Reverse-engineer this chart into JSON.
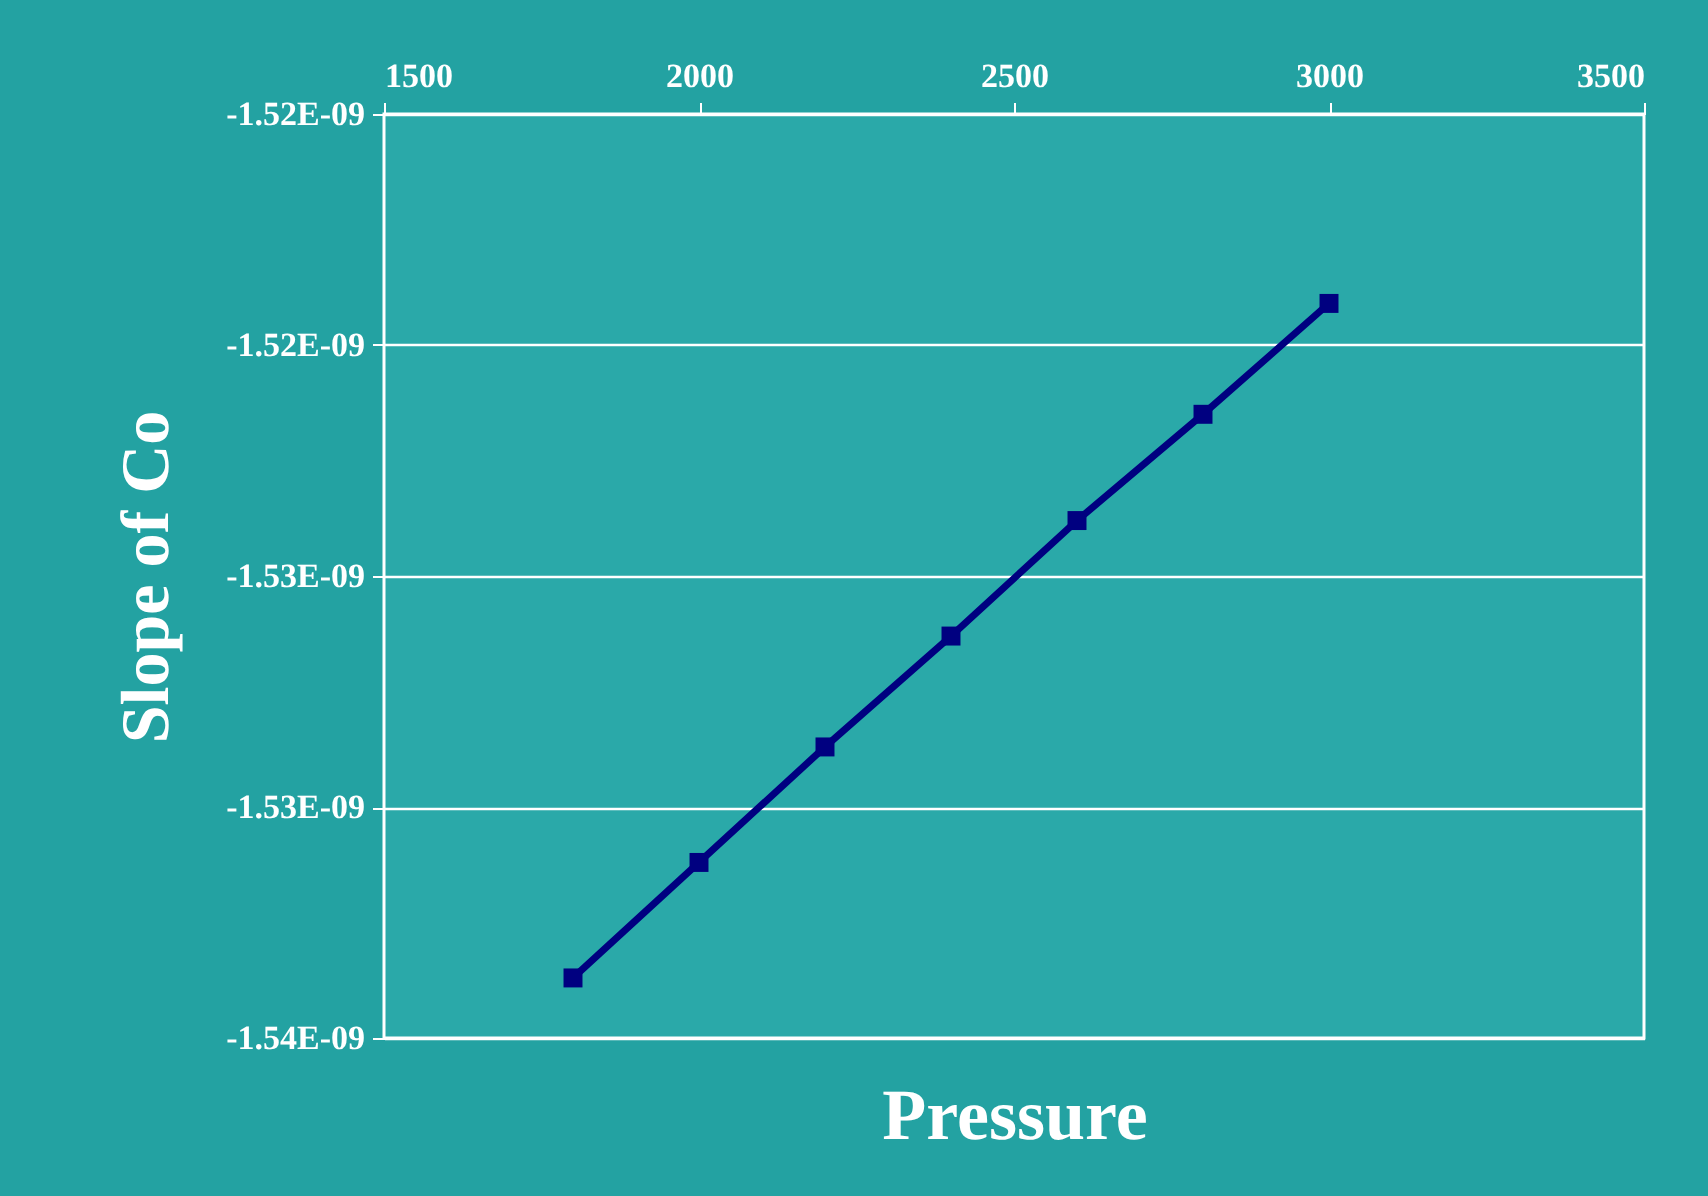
{
  "chart_data": {
    "type": "line",
    "xlabel": "Pressure",
    "ylabel": "Slope of Co",
    "x": [
      1800,
      2000,
      2200,
      2400,
      2600,
      2800,
      3000
    ],
    "series": [
      {
        "color": "#000080",
        "values": [
          -1.5337e-09,
          -1.5312e-09,
          -1.5287e-09,
          -1.5263e-09,
          -1.5238e-09,
          -1.5215e-09,
          -1.5191e-09
        ]
      }
    ],
    "xlim": [
      1500,
      3500
    ],
    "xticks": [
      1500,
      2000,
      2500,
      3000,
      3500
    ],
    "ylim": [
      -1.535e-09,
      -1.515e-09
    ],
    "yticks": [
      {
        "value": -1.535e-09,
        "label": "-1.54E-09"
      },
      {
        "value": -1.53e-09,
        "label": "-1.53E-09"
      },
      {
        "value": -1.525e-09,
        "label": "-1.53E-09"
      },
      {
        "value": -1.52e-09,
        "label": "-1.52E-09"
      },
      {
        "value": -1.515e-09,
        "label": "-1.52E-09"
      }
    ],
    "grid": "y",
    "marker": "square",
    "line_style": "solid"
  }
}
